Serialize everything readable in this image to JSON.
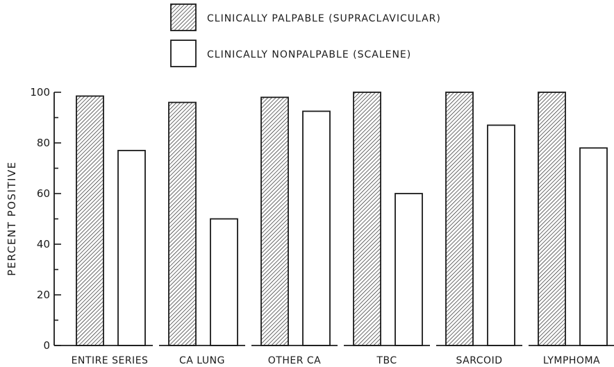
{
  "chart_data": {
    "type": "bar",
    "title": "",
    "xlabel": "",
    "ylabel": "PERCENT POSITIVE",
    "ylim": [
      0,
      100
    ],
    "yticks": [
      0,
      20,
      40,
      60,
      80,
      100
    ],
    "grid": false,
    "legend_position": "top-center",
    "categories": [
      "ENTIRE SERIES",
      "CA LUNG",
      "OTHER CA",
      "TBC",
      "SARCOID",
      "LYMPHOMA"
    ],
    "series": [
      {
        "name": "CLINICALLY PALPABLE (SUPRACLAVICULAR)",
        "pattern": "hatched",
        "values": [
          98.5,
          96,
          98,
          100,
          100,
          100
        ]
      },
      {
        "name": "CLINICALLY NONPALPABLE (SCALENE)",
        "pattern": "open",
        "values": [
          77,
          50,
          92.5,
          60,
          87,
          78
        ]
      }
    ]
  },
  "colors": {
    "ink": "#1a1a1a",
    "background": "#ffffff"
  }
}
